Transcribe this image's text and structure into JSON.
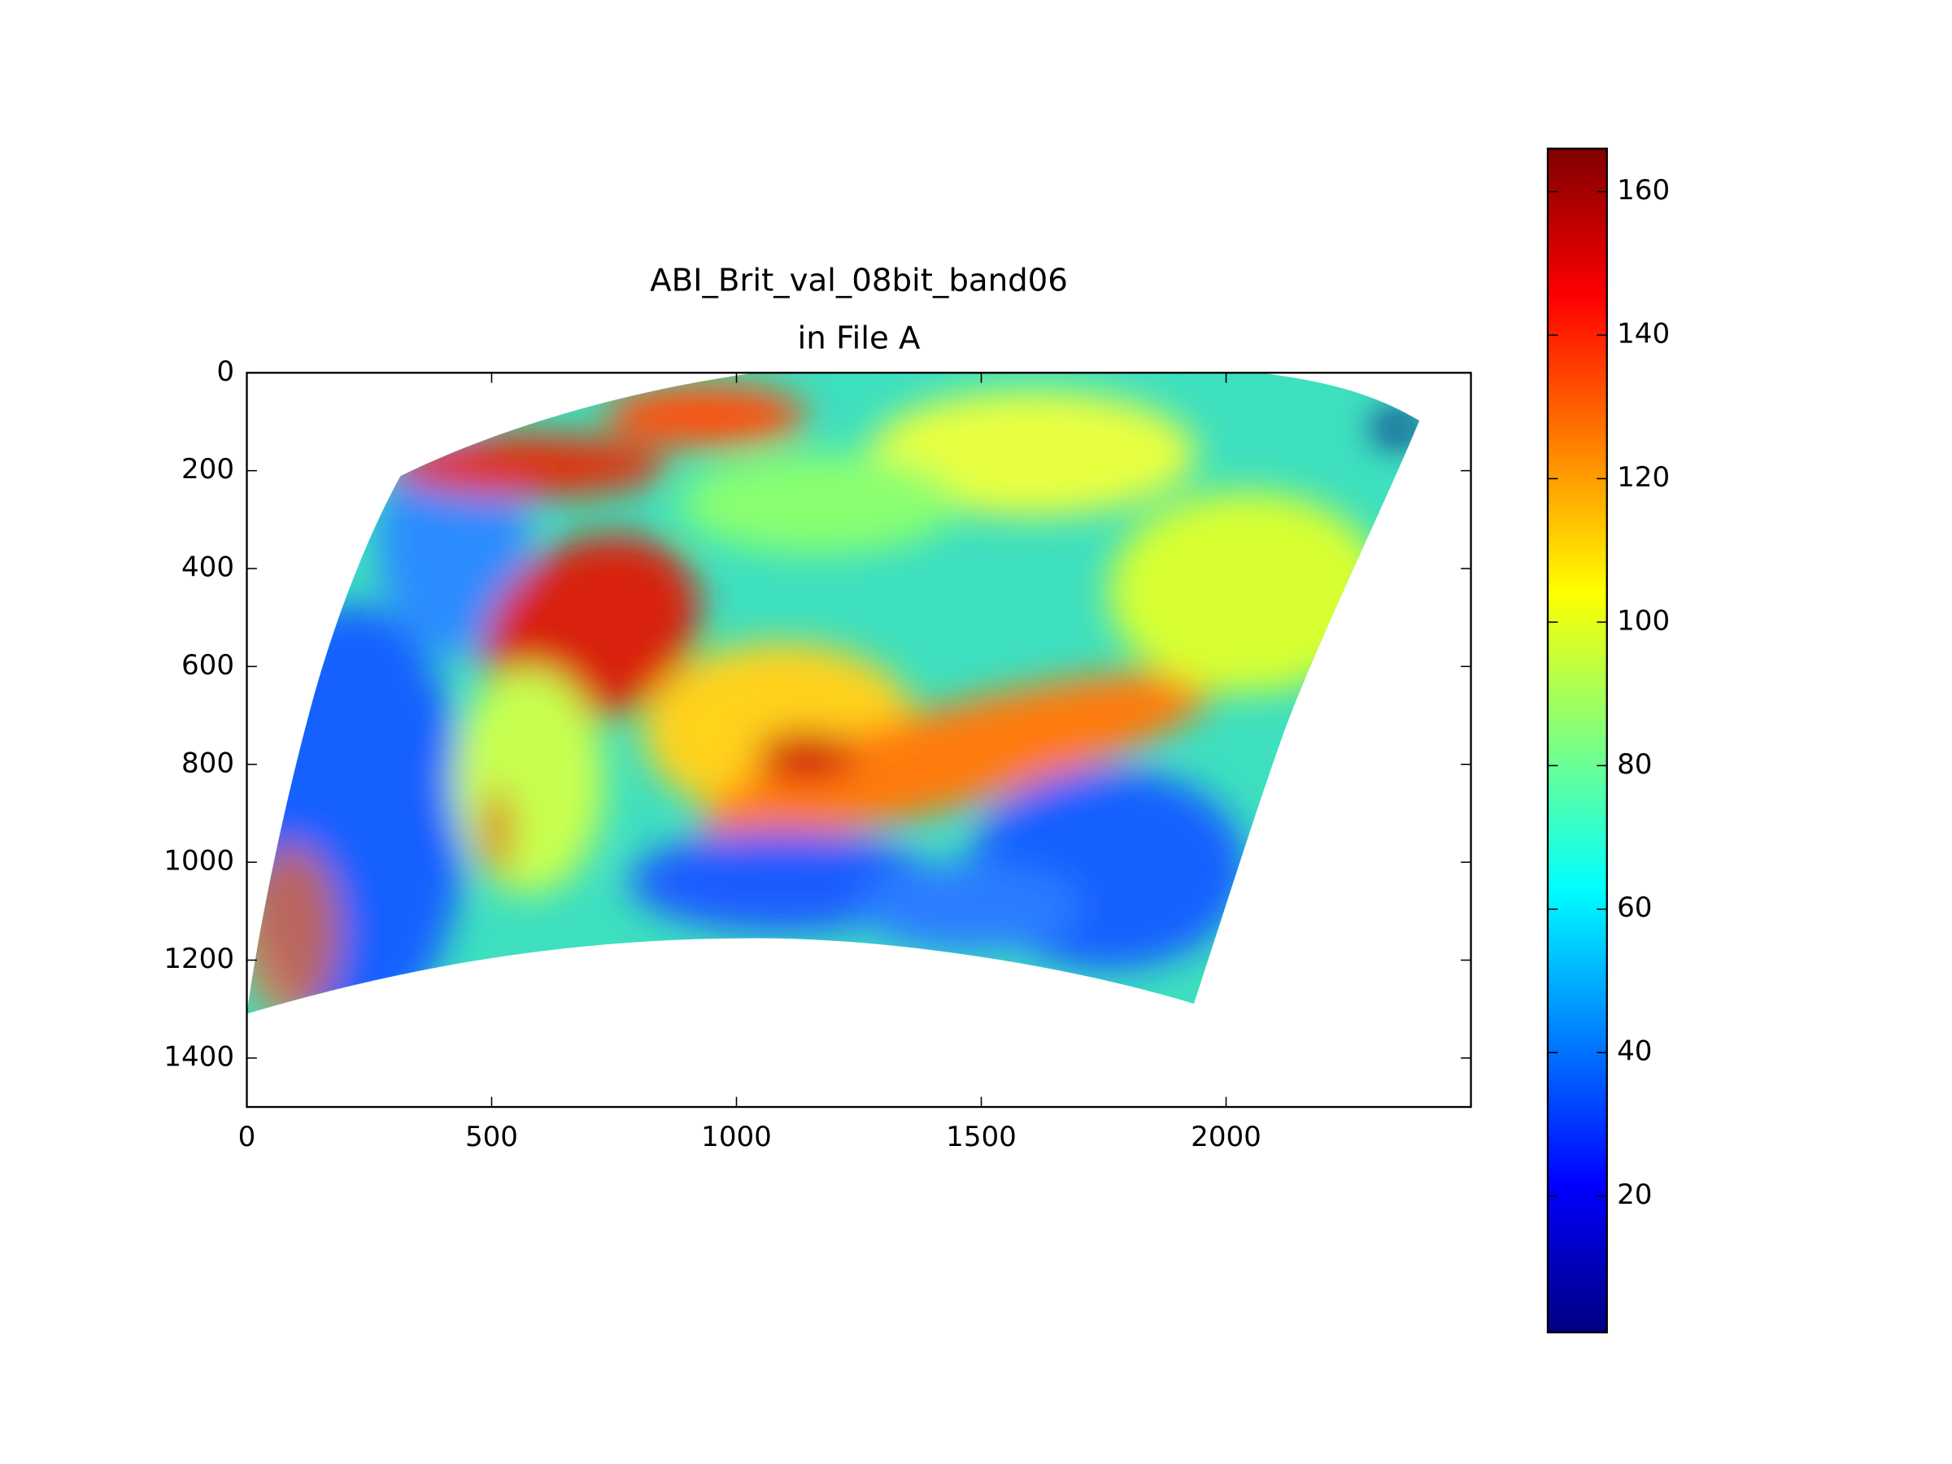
{
  "chart_data": {
    "type": "image",
    "title": [
      "ABI_Brit_val_08bit_band06",
      "in File A"
    ],
    "colormap": "jet",
    "xlim": [
      0,
      2500
    ],
    "xticks": [
      0,
      500,
      1000,
      1500,
      2000
    ],
    "ylim": [
      1500,
      0
    ],
    "yticks": [
      0,
      200,
      400,
      600,
      800,
      1000,
      1200,
      1400
    ],
    "clim": [
      1,
      166
    ],
    "cticks": [
      20,
      40,
      60,
      80,
      100,
      120,
      140,
      160
    ]
  }
}
